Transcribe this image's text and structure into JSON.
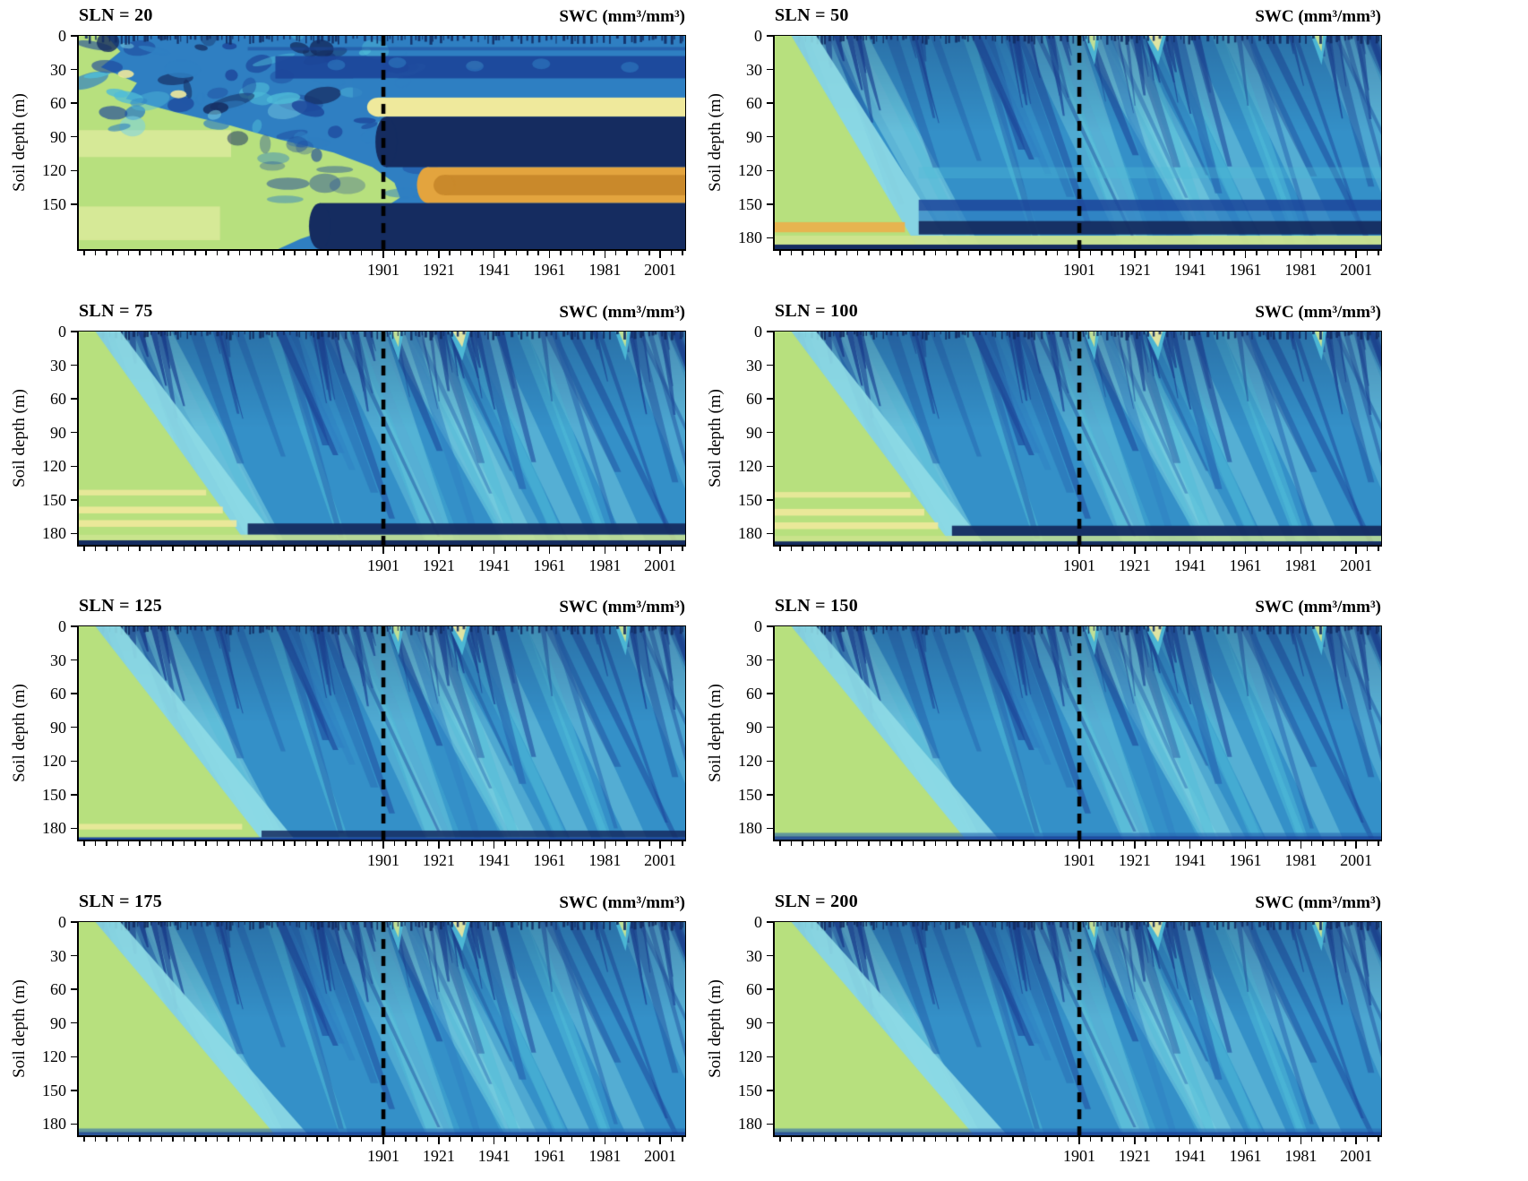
{
  "chart_data": {
    "type": "heatmap",
    "title": "",
    "xlabel": "",
    "ylabel": "Soil depth (m)",
    "unit_label": "SWC (mm³/mm³)",
    "x_range": [
      1791,
      2010
    ],
    "x_major_ticks": [
      1901,
      1921,
      1941,
      1961,
      1981,
      2001
    ],
    "x_minor_step": 4,
    "y_range": [
      0,
      190
    ],
    "y_ticks_default": [
      0,
      30,
      60,
      90,
      120,
      150,
      180
    ],
    "dashed_line_year": 1901,
    "event_seed": 1234,
    "grid": "off",
    "legend_position": "none",
    "palette": {
      "base": "#3490c8",
      "lightCyan": "#7cd2e2",
      "cyan": "#4fbcd8",
      "midBlue": "#2f7fc2",
      "blue": "#2766b0",
      "navy": "#1c459a",
      "deepNavy": "#152c60",
      "speckle": "#122c63",
      "halo": "#8fdbe6",
      "green": "#b7e07e",
      "yellowGreen": "#cde48f",
      "paleYellow": "#efe99c",
      "paleGreenYellow": "#dcea9b",
      "orange": "#e9b14e",
      "orangeOuter": "#e3a43e",
      "orangeInner": "#c9892b"
    },
    "surface_spots": [
      {
        "yr": 1926,
        "w": 5,
        "color": "paleYellow"
      },
      {
        "yr": 1904,
        "w": 3,
        "color": "yellowGreen"
      },
      {
        "yr": 1986,
        "w": 3,
        "color": "yellowGreen"
      }
    ],
    "panels": [
      {
        "label": "SLN = 20",
        "sln": 20,
        "style": "layered",
        "seed": 11,
        "y_ticks": [
          0,
          30,
          60,
          90,
          120,
          150
        ],
        "green_poly": [
          [
            1791,
            0
          ],
          [
            1801,
            0
          ],
          [
            1806,
            14
          ],
          [
            1799,
            28
          ],
          [
            1812,
            42
          ],
          [
            1808,
            56
          ],
          [
            1826,
            68
          ],
          [
            1846,
            80
          ],
          [
            1863,
            92
          ],
          [
            1883,
            104
          ],
          [
            1897,
            117
          ],
          [
            1905,
            131
          ],
          [
            1907,
            144
          ],
          [
            1899,
            157
          ],
          [
            1885,
            169
          ],
          [
            1871,
            181
          ],
          [
            1863,
            190
          ],
          [
            1791,
            190
          ]
        ],
        "pale_patches": [
          {
            "d0": 84,
            "d1": 108,
            "to": 1846
          },
          {
            "d0": 152,
            "d1": 182,
            "to": 1842
          }
        ],
        "layers": [
          {
            "d0": 10,
            "d1": 13,
            "from": 1852,
            "color": "navy",
            "alpha": 0.5
          },
          {
            "d0": 18,
            "d1": 38,
            "from": 1862,
            "color": "navy",
            "alpha": 0.92
          },
          {
            "d0": 38,
            "d1": 55,
            "from": 1890,
            "color": "midBlue",
            "alpha": 0.75
          },
          {
            "d0": 55,
            "d1": 72,
            "from": 1899,
            "color": "paleYellow",
            "alpha": 1,
            "cap": true
          },
          {
            "d0": 72,
            "d1": 117,
            "from": 1902,
            "color": "deepNavy",
            "alpha": 1,
            "cap": true
          },
          {
            "d0": 117,
            "d1": 149,
            "from": 1917,
            "color": "orangeOuter",
            "alpha": 1,
            "cap": true
          },
          {
            "d0": 124,
            "d1": 142,
            "from": 1923,
            "color": "orangeInner",
            "alpha": 1,
            "cap": true
          },
          {
            "d0": 149,
            "d1": 190,
            "from": 1878,
            "color": "deepNavy",
            "alpha": 1,
            "cap": true
          }
        ],
        "gap_spots": [
          {
            "yr": 1884,
            "d": 26
          },
          {
            "yr": 1906,
            "d": 24
          },
          {
            "yr": 1934,
            "d": 27
          },
          {
            "yr": 1958,
            "d": 25
          },
          {
            "yr": 1990,
            "d": 28
          }
        ],
        "yellow_spots": [
          {
            "yr": 1808,
            "d": 34
          },
          {
            "yr": 1827,
            "d": 52
          },
          {
            "yr": 1934,
            "d": 26
          }
        ]
      },
      {
        "label": "SLN = 50",
        "sln": 50,
        "style": "streaked",
        "seed": 22,
        "y_ticks": [
          0,
          30,
          60,
          90,
          120,
          150,
          180
        ],
        "wedge_top_year": 1797,
        "wedge_bottom_year": 1843,
        "stripes": [
          {
            "d0": 166,
            "d1": 175,
            "to": 1838,
            "color": "orange",
            "alpha": 0.95
          }
        ],
        "bands": [
          {
            "d0": 117,
            "d1": 127,
            "from": 1843,
            "color": "cyan",
            "alpha": 0.35
          },
          {
            "d0": 146,
            "d1": 156,
            "from": 1843,
            "color": "navy",
            "alpha": 0.85
          },
          {
            "d0": 156,
            "d1": 165,
            "from": 1843,
            "color": "midBlue",
            "alpha": 0.7
          },
          {
            "d0": 165,
            "d1": 177,
            "from": 1843,
            "color": "deepNavy",
            "alpha": 0.95
          },
          {
            "d0": 178,
            "d1": 186,
            "from": 1791,
            "color": "yellowGreen",
            "alpha": 0.95
          },
          {
            "d0": 186,
            "d1": 190,
            "from": 1791,
            "color": "deepNavy",
            "alpha": 1
          }
        ]
      },
      {
        "label": "SLN = 75",
        "sln": 75,
        "style": "streaked",
        "seed": 33,
        "y_ticks": [
          0,
          30,
          60,
          90,
          120,
          150,
          180
        ],
        "wedge_top_year": 1797,
        "wedge_bottom_year": 1852,
        "stripes": [
          {
            "d0": 141,
            "d1": 146,
            "to": 1837,
            "color": "paleYellow",
            "alpha": 0.85
          },
          {
            "d0": 156,
            "d1": 162,
            "to": 1843,
            "color": "paleYellow",
            "alpha": 0.9
          },
          {
            "d0": 168,
            "d1": 174,
            "to": 1848,
            "color": "paleYellow",
            "alpha": 0.9
          }
        ],
        "bands": [
          {
            "d0": 171,
            "d1": 181,
            "from": 1852,
            "color": "deepNavy",
            "alpha": 0.95
          },
          {
            "d0": 181,
            "d1": 186,
            "from": 1791,
            "color": "yellowGreen",
            "alpha": 0.85
          },
          {
            "d0": 186,
            "d1": 190,
            "from": 1791,
            "color": "deepNavy",
            "alpha": 1
          }
        ]
      },
      {
        "label": "SLN = 100",
        "sln": 100,
        "style": "streaked",
        "seed": 44,
        "y_ticks": [
          0,
          30,
          60,
          90,
          120,
          150,
          180
        ],
        "wedge_top_year": 1797,
        "wedge_bottom_year": 1855,
        "stripes": [
          {
            "d0": 143,
            "d1": 148,
            "to": 1840,
            "color": "paleYellow",
            "alpha": 0.85
          },
          {
            "d0": 158,
            "d1": 164,
            "to": 1845,
            "color": "paleYellow",
            "alpha": 0.9
          },
          {
            "d0": 170,
            "d1": 176,
            "to": 1850,
            "color": "paleYellow",
            "alpha": 0.9
          }
        ],
        "bands": [
          {
            "d0": 173,
            "d1": 182,
            "from": 1855,
            "color": "deepNavy",
            "alpha": 0.95
          },
          {
            "d0": 182,
            "d1": 187,
            "from": 1791,
            "color": "yellowGreen",
            "alpha": 0.8
          },
          {
            "d0": 187,
            "d1": 190,
            "from": 1791,
            "color": "deepNavy",
            "alpha": 1
          }
        ]
      },
      {
        "label": "SLN = 125",
        "sln": 125,
        "style": "streaked",
        "seed": 55,
        "y_ticks": [
          0,
          30,
          60,
          90,
          120,
          150,
          180
        ],
        "wedge_top_year": 1797,
        "wedge_bottom_year": 1857,
        "stripes": [
          {
            "d0": 176,
            "d1": 181,
            "to": 1850,
            "color": "paleYellow",
            "alpha": 0.85
          }
        ],
        "bands": [
          {
            "d0": 182,
            "d1": 188,
            "from": 1857,
            "color": "deepNavy",
            "alpha": 0.85
          },
          {
            "d0": 188,
            "d1": 190,
            "from": 1791,
            "color": "navy",
            "alpha": 1
          }
        ]
      },
      {
        "label": "SLN = 150",
        "sln": 150,
        "style": "streaked",
        "seed": 66,
        "y_ticks": [
          0,
          30,
          60,
          90,
          120,
          150,
          180
        ],
        "wedge_top_year": 1797,
        "wedge_bottom_year": 1860,
        "stripes": [],
        "bands": [
          {
            "d0": 184,
            "d1": 187,
            "from": 1791,
            "color": "blue",
            "alpha": 0.6
          },
          {
            "d0": 187,
            "d1": 190,
            "from": 1791,
            "color": "navy",
            "alpha": 0.9
          }
        ]
      },
      {
        "label": "SLN = 175",
        "sln": 175,
        "style": "streaked",
        "seed": 77,
        "y_ticks": [
          0,
          30,
          60,
          90,
          120,
          150,
          180
        ],
        "wedge_top_year": 1797,
        "wedge_bottom_year": 1862,
        "stripes": [],
        "bands": [
          {
            "d0": 184,
            "d1": 187,
            "from": 1791,
            "color": "blue",
            "alpha": 0.6
          },
          {
            "d0": 187,
            "d1": 190,
            "from": 1791,
            "color": "navy",
            "alpha": 0.9
          }
        ]
      },
      {
        "label": "SLN = 200",
        "sln": 200,
        "style": "streaked",
        "seed": 88,
        "y_ticks": [
          0,
          30,
          60,
          90,
          120,
          150,
          180
        ],
        "wedge_top_year": 1797,
        "wedge_bottom_year": 1863,
        "stripes": [],
        "bands": [
          {
            "d0": 184,
            "d1": 187,
            "from": 1791,
            "color": "blue",
            "alpha": 0.6
          },
          {
            "d0": 187,
            "d1": 190,
            "from": 1791,
            "color": "navy",
            "alpha": 0.9
          }
        ]
      }
    ]
  }
}
